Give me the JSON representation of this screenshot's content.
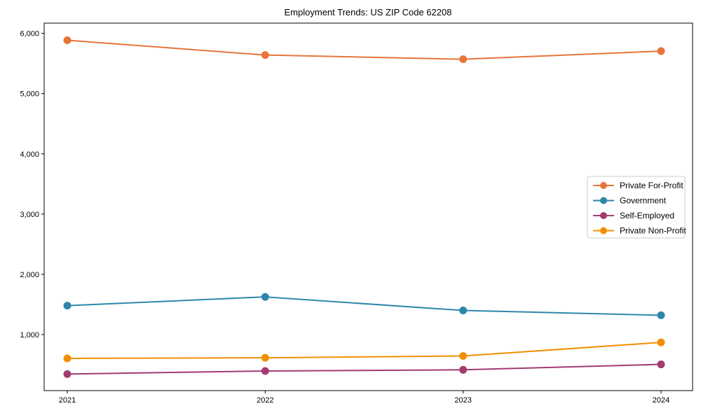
{
  "figure": {
    "background": "#ffffff"
  },
  "chart_data": {
    "type": "line",
    "title": "Employment Trends: US ZIP Code 62208",
    "xlabel": "",
    "ylabel": "",
    "categories": [
      "2021",
      "2022",
      "2023",
      "2024"
    ],
    "series": [
      {
        "name": "Private For-Profit",
        "color": "#E8743B",
        "values": [
          5885,
          5640,
          5570,
          5705
        ]
      },
      {
        "name": "Government",
        "color": "#2E86AB",
        "values": [
          1480,
          1625,
          1400,
          1320
        ]
      },
      {
        "name": "Self-Employed",
        "color": "#A23B72",
        "values": [
          345,
          395,
          415,
          505
        ]
      },
      {
        "name": "Private Non-Profit",
        "color": "#F18F01",
        "values": [
          605,
          615,
          645,
          870
        ]
      }
    ],
    "y_ticks": [
      {
        "value": 1000,
        "label": "1,000"
      },
      {
        "value": 2000,
        "label": "2,000"
      },
      {
        "value": 3000,
        "label": "3,000"
      },
      {
        "value": 4000,
        "label": "4,000"
      },
      {
        "value": 5000,
        "label": "5,000"
      },
      {
        "value": 6000,
        "label": "6,000"
      }
    ],
    "ylim": [
      70,
      6170
    ],
    "grid": false,
    "legend_position": "center-right",
    "marker": "circle",
    "axis_color": "#000000",
    "legend_border_color": "#cccccc"
  }
}
